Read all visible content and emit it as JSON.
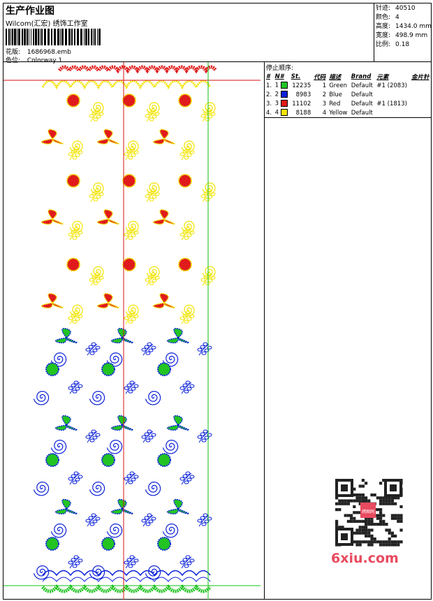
{
  "header": {
    "title": "生产作业图",
    "company": "Wilcom(汇宏) 绣饰工作室",
    "design_label": "花版:",
    "design_file": "1686968.emb",
    "colorway_label": "色位:",
    "colorway": "Colorway 1"
  },
  "stats": [
    {
      "label": "针迹:",
      "value": "40510"
    },
    {
      "label": "颜色:",
      "value": "4"
    },
    {
      "label": "高度:",
      "value": "1434.0 mm"
    },
    {
      "label": "宽度:",
      "value": "498.9 mm"
    },
    {
      "label": "比例:",
      "value": "0.18"
    }
  ],
  "legend": {
    "caption": "停止顺序:",
    "headers": [
      "#",
      "N#",
      "St.",
      "代码",
      "描述",
      "Brand",
      "元素",
      "金片针"
    ],
    "rows": [
      {
        "idx": "1.",
        "n": "1",
        "color": "#22c422",
        "stitches": "12235",
        "code": "1",
        "desc": "Green",
        "brand": "Default",
        "element": "",
        "sequin": ""
      },
      {
        "idx": "2.",
        "n": "2",
        "color": "#0b21d8",
        "stitches": "8983",
        "code": "2",
        "desc": "Blue",
        "brand": "Default",
        "element": "",
        "sequin": ""
      },
      {
        "idx": "3.",
        "n": "3",
        "color": "#e01b1b",
        "stitches": "11102",
        "code": "3",
        "desc": "Red",
        "brand": "Default",
        "element": "#1 (1813)",
        "sequin": ""
      },
      {
        "idx": "4.",
        "n": "4",
        "color": "#f2e400",
        "stitches": "8188",
        "code": "4",
        "desc": "Yellow",
        "brand": "Default",
        "element": "",
        "sequin": ""
      }
    ],
    "element_row1": "#1 (2083)"
  },
  "watermark": "6xiu.com",
  "qr_badge": "绣图网",
  "colors": {
    "green": "#22c422",
    "blue": "#0b21d8",
    "red": "#e01b1b",
    "yellow": "#f2e400",
    "guide_red": "#d81010",
    "guide_green": "#10c010"
  }
}
